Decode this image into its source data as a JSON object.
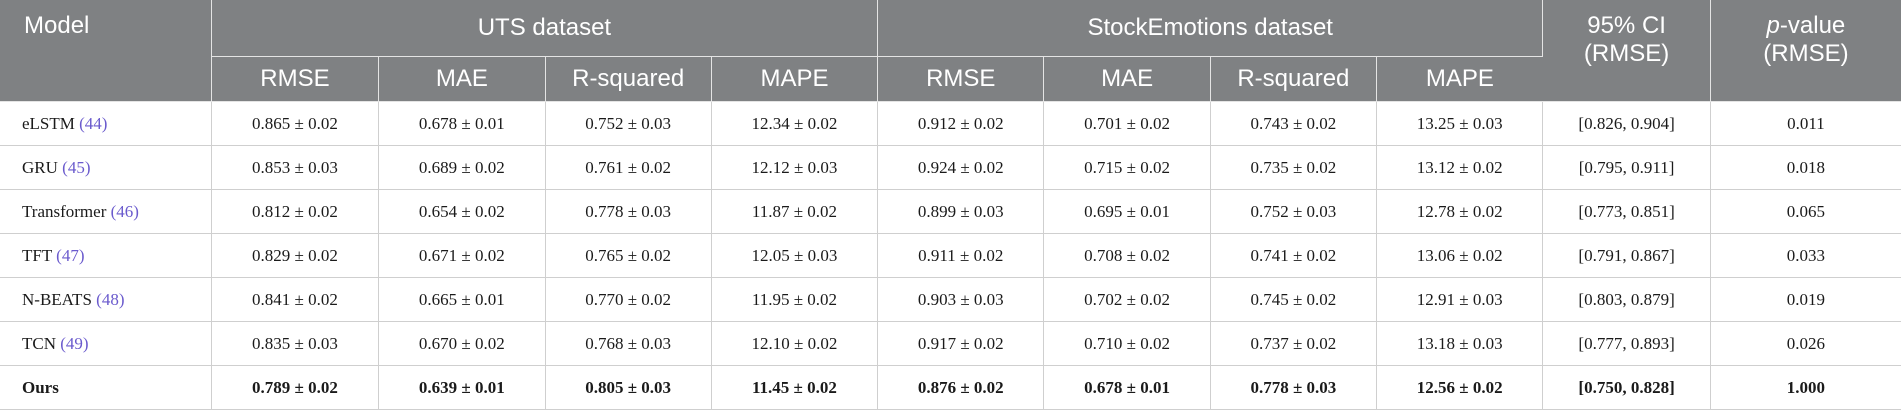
{
  "header": {
    "model": "Model",
    "uts": "UTS dataset",
    "stock": "StockEmotions dataset",
    "ci_line1": "95% CI",
    "ci_line2": "(RMSE)",
    "p_italic": "p",
    "p_rest": "-value",
    "p_line2": "(RMSE)",
    "metrics": [
      "RMSE",
      "MAE",
      "R-squared",
      "MAPE"
    ]
  },
  "rows": [
    {
      "model": "eLSTM",
      "ref": "(44)",
      "uts": [
        "0.865 ± 0.02",
        "0.678 ± 0.01",
        "0.752 ± 0.03",
        "12.34 ± 0.02"
      ],
      "stock": [
        "0.912 ± 0.02",
        "0.701 ± 0.02",
        "0.743 ± 0.02",
        "13.25 ± 0.03"
      ],
      "ci": "[0.826, 0.904]",
      "p": "0.011"
    },
    {
      "model": "GRU",
      "ref": "(45)",
      "uts": [
        "0.853 ± 0.03",
        "0.689 ± 0.02",
        "0.761 ± 0.02",
        "12.12 ± 0.03"
      ],
      "stock": [
        "0.924 ± 0.02",
        "0.715 ± 0.02",
        "0.735 ± 0.02",
        "13.12 ± 0.02"
      ],
      "ci": "[0.795, 0.911]",
      "p": "0.018"
    },
    {
      "model": "Transformer",
      "ref": "(46)",
      "uts": [
        "0.812 ± 0.02",
        "0.654 ± 0.02",
        "0.778 ± 0.03",
        "11.87 ± 0.02"
      ],
      "stock": [
        "0.899 ± 0.03",
        "0.695 ± 0.01",
        "0.752 ± 0.03",
        "12.78 ± 0.02"
      ],
      "ci": "[0.773, 0.851]",
      "p": "0.065"
    },
    {
      "model": "TFT",
      "ref": "(47)",
      "uts": [
        "0.829 ± 0.02",
        "0.671 ± 0.02",
        "0.765 ± 0.02",
        "12.05 ± 0.03"
      ],
      "stock": [
        "0.911 ± 0.02",
        "0.708 ± 0.02",
        "0.741 ± 0.02",
        "13.06 ± 0.02"
      ],
      "ci": "[0.791, 0.867]",
      "p": "0.033"
    },
    {
      "model": "N-BEATS",
      "ref": "(48)",
      "uts": [
        "0.841 ± 0.02",
        "0.665 ± 0.01",
        "0.770 ± 0.02",
        "11.95 ± 0.02"
      ],
      "stock": [
        "0.903 ± 0.03",
        "0.702 ± 0.02",
        "0.745 ± 0.02",
        "12.91 ± 0.03"
      ],
      "ci": "[0.803, 0.879]",
      "p": "0.019"
    },
    {
      "model": "TCN",
      "ref": "(49)",
      "uts": [
        "0.835 ± 0.03",
        "0.670 ± 0.02",
        "0.768 ± 0.03",
        "12.10 ± 0.02"
      ],
      "stock": [
        "0.917 ± 0.02",
        "0.710 ± 0.02",
        "0.737 ± 0.02",
        "13.18 ± 0.03"
      ],
      "ci": "[0.777, 0.893]",
      "p": "0.026"
    },
    {
      "model": "Ours",
      "ref": "",
      "uts": [
        "0.789 ± 0.02",
        "0.639 ± 0.01",
        "0.805 ± 0.03",
        "11.45 ± 0.02"
      ],
      "stock": [
        "0.876 ± 0.02",
        "0.678 ± 0.01",
        "0.778 ± 0.03",
        "12.56 ± 0.02"
      ],
      "ci": "[0.750, 0.828]",
      "p": "1.000"
    }
  ],
  "colors": {
    "header_bg": "#7f8183",
    "header_text": "#ffffff",
    "ref_link": "#6a5acd",
    "border": "#cfcfcf"
  }
}
